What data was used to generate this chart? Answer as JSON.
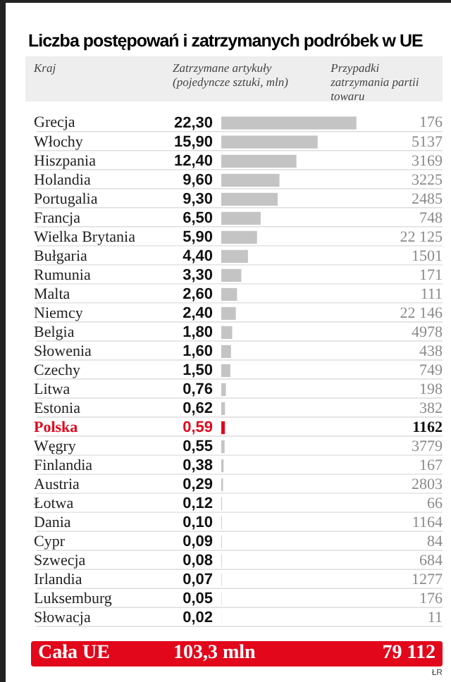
{
  "chart_data": {
    "type": "bar",
    "orientation": "horizontal",
    "title": "Liczba postępowań i zatrzymanych podróbek w UE",
    "ylabel": "Kraj",
    "xlabel": "Zatrzymane artykuły (pojedyncze sztuki, mln)",
    "categories": [
      "Grecja",
      "Włochy",
      "Hiszpania",
      "Holandia",
      "Portugalia",
      "Francja",
      "Wielka Brytania",
      "Bułgaria",
      "Rumunia",
      "Malta",
      "Niemcy",
      "Belgia",
      "Słowenia",
      "Czechy",
      "Litwa",
      "Estonia",
      "Polska",
      "Węgry",
      "Finlandia",
      "Austria",
      "Łotwa",
      "Dania",
      "Cypr",
      "Szwecja",
      "Irlandia",
      "Luksemburg",
      "Słowacja"
    ],
    "values": [
      22.3,
      15.9,
      12.4,
      9.6,
      9.3,
      6.5,
      5.9,
      4.4,
      3.3,
      2.6,
      2.4,
      1.8,
      1.6,
      1.5,
      0.76,
      0.62,
      0.59,
      0.55,
      0.38,
      0.29,
      0.12,
      0.1,
      0.09,
      0.08,
      0.07,
      0.05,
      0.02
    ],
    "value_labels": [
      "22,30",
      "15,90",
      "12,40",
      "9,60",
      "9,30",
      "6,50",
      "5,90",
      "4,40",
      "3,30",
      "2,60",
      "2,40",
      "1,80",
      "1,60",
      "1,50",
      "0,76",
      "0,62",
      "0,59",
      "0,55",
      "0,38",
      "0,29",
      "0,12",
      "0,10",
      "0,09",
      "0,08",
      "0,07",
      "0,05",
      "0,02"
    ],
    "colors": [
      "#c4c4c4",
      "#c4c4c4",
      "#c4c4c4",
      "#c4c4c4",
      "#c4c4c4",
      "#c4c4c4",
      "#c4c4c4",
      "#c4c4c4",
      "#c4c4c4",
      "#c4c4c4",
      "#c4c4c4",
      "#c4c4c4",
      "#c4c4c4",
      "#c4c4c4",
      "#c4c4c4",
      "#c4c4c4",
      "#e2071b",
      "#c4c4c4",
      "#c4c4c4",
      "#c4c4c4",
      "#c4c4c4",
      "#c4c4c4",
      "#c4c4c4",
      "#c4c4c4",
      "#c4c4c4",
      "#c4c4c4",
      "#c4c4c4"
    ],
    "annotations": [
      "Przypadki zatrzymania partii towaru",
      "Cała UE",
      "103,3 mln",
      "79 112",
      "ŁR",
      "176",
      "5137",
      "3169",
      "3225",
      "2485",
      "748",
      "22 125",
      "1501",
      "171",
      "111",
      "22 146",
      "4978",
      "438",
      "749",
      "198",
      "382",
      "1162",
      "3779",
      "167",
      "2803",
      "66",
      "1164",
      "84",
      "684",
      "1277",
      "176",
      "11"
    ]
  }
}
